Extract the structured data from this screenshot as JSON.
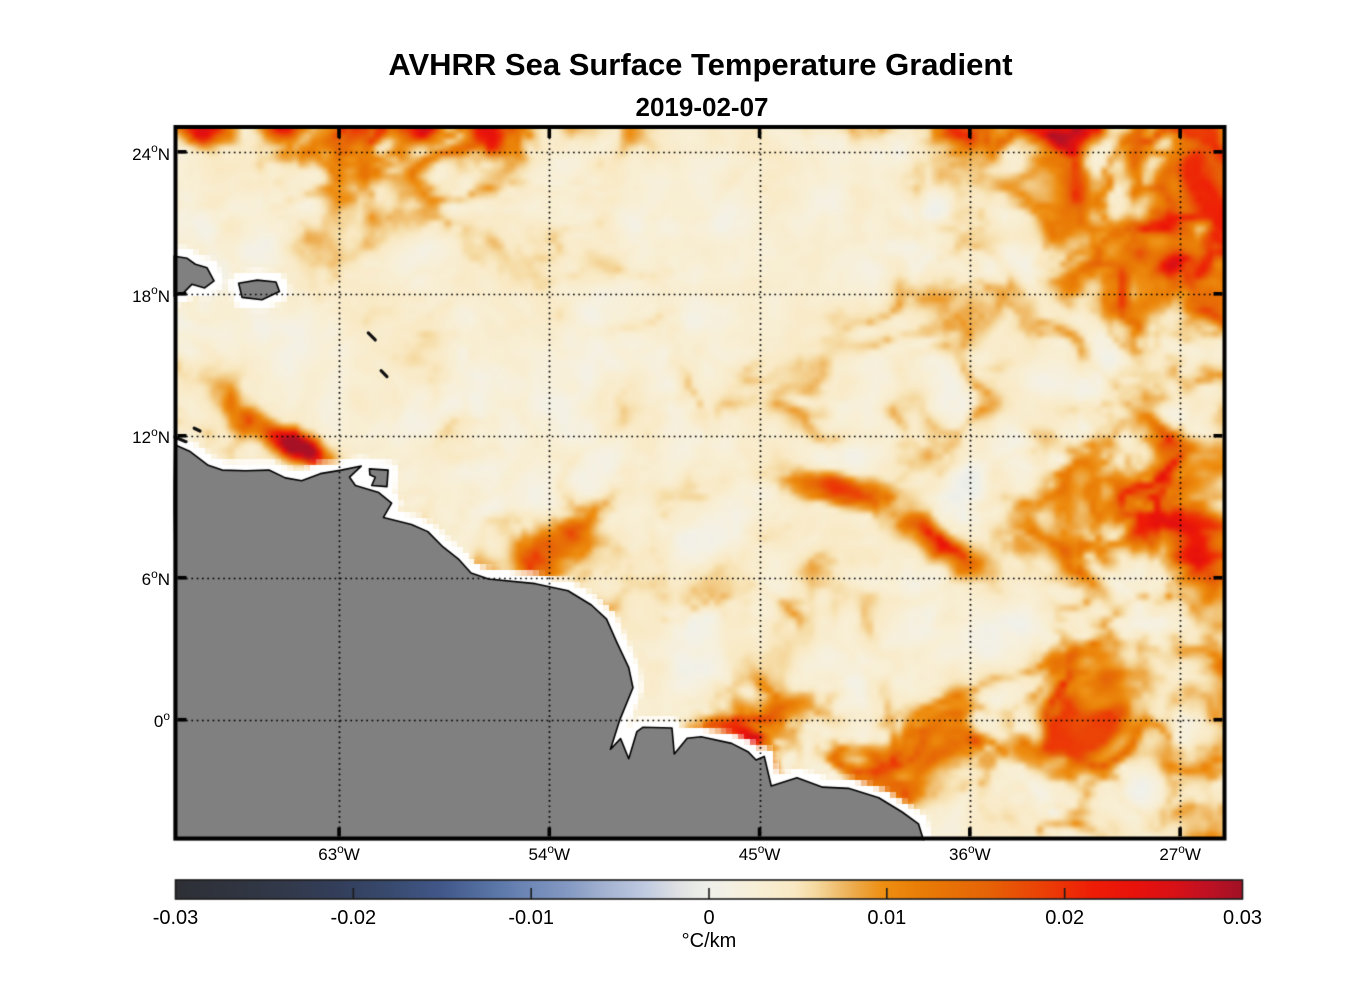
{
  "title": "AVHRR Sea Surface Temperature Gradient",
  "subtitle": "2019-02-07",
  "chart_data": {
    "type": "heatmap",
    "title": "AVHRR Sea Surface Temperature Gradient",
    "subtitle": "2019-02-07",
    "grid": "dotted",
    "x_axis": {
      "range": [
        -70.0,
        -25.1
      ],
      "tick_values": [
        -63,
        -54,
        -45,
        -36,
        -27
      ],
      "tick_labels": [
        "63°W",
        "54°W",
        "45°W",
        "36°W",
        "27°W"
      ],
      "tick_parts": [
        {
          "num": "63",
          "suffix": "W"
        },
        {
          "num": "54",
          "suffix": "W"
        },
        {
          "num": "45",
          "suffix": "W"
        },
        {
          "num": "36",
          "suffix": "W"
        },
        {
          "num": "27",
          "suffix": "W"
        }
      ]
    },
    "y_axis": {
      "range": [
        -5.02,
        25.05
      ],
      "tick_values": [
        24,
        18,
        12,
        6,
        0
      ],
      "tick_labels": [
        "24°N",
        "18°N",
        "12°N",
        "6°N",
        "0°"
      ],
      "tick_parts": [
        {
          "num": "24",
          "suffix": "N"
        },
        {
          "num": "18",
          "suffix": "N"
        },
        {
          "num": "12",
          "suffix": "N"
        },
        {
          "num": "6",
          "suffix": "N"
        },
        {
          "num": "0",
          "suffix": ""
        }
      ]
    },
    "colorbar": {
      "min": -0.03,
      "max": 0.03,
      "tick_values": [
        -0.03,
        -0.02,
        -0.01,
        0,
        0.01,
        0.02,
        0.03
      ],
      "tick_labels": [
        "-0.03",
        "-0.02",
        "-0.01",
        "0",
        "0.01",
        "0.02",
        "0.03"
      ],
      "label": "°C/km",
      "stops": [
        [
          0.0,
          "#2e3036"
        ],
        [
          0.05,
          "#30343f"
        ],
        [
          0.1,
          "#32394a"
        ],
        [
          0.15,
          "#333e5a"
        ],
        [
          0.2,
          "#384a6e"
        ],
        [
          0.25,
          "#42588a"
        ],
        [
          0.3,
          "#5a77a8"
        ],
        [
          0.33,
          "#6e87b6"
        ],
        [
          0.37,
          "#869bc4"
        ],
        [
          0.4,
          "#a2b1d0"
        ],
        [
          0.44,
          "#c0cbe2"
        ],
        [
          0.47,
          "#dee0e3"
        ],
        [
          0.487,
          "#e9ebe7"
        ],
        [
          0.503,
          "#f0f1ea"
        ],
        [
          0.52,
          "#f4f0e4"
        ],
        [
          0.545,
          "#f8efd6"
        ],
        [
          0.58,
          "#f9e9c4"
        ],
        [
          0.6,
          "#f5d9a0"
        ],
        [
          0.635,
          "#edac4e"
        ],
        [
          0.663,
          "#ee8f12"
        ],
        [
          0.7,
          "#e97c06"
        ],
        [
          0.76,
          "#e66407"
        ],
        [
          0.82,
          "#ec3b06"
        ],
        [
          0.86,
          "#ee1d06"
        ],
        [
          0.9,
          "#e8120c"
        ],
        [
          0.935,
          "#d91116"
        ],
        [
          0.965,
          "#c11123"
        ],
        [
          1.0,
          "#a11126"
        ]
      ]
    },
    "land": {
      "fill": "#808080",
      "outline": "#000000",
      "halo": "#ffffff",
      "mainland": [
        [
          -70.03,
          11.62
        ],
        [
          -69.4,
          11.35
        ],
        [
          -68.6,
          10.75
        ],
        [
          -68.0,
          10.55
        ],
        [
          -67.0,
          10.52
        ],
        [
          -66.0,
          10.55
        ],
        [
          -65.3,
          10.22
        ],
        [
          -64.6,
          10.1
        ],
        [
          -63.8,
          10.4
        ],
        [
          -62.9,
          10.55
        ],
        [
          -62.05,
          10.72
        ],
        [
          -62.55,
          10.25
        ],
        [
          -62.3,
          9.9
        ],
        [
          -61.3,
          9.6
        ],
        [
          -60.75,
          9.15
        ],
        [
          -61.1,
          8.55
        ],
        [
          -59.9,
          8.25
        ],
        [
          -59.2,
          7.95
        ],
        [
          -58.55,
          7.3
        ],
        [
          -57.9,
          6.8
        ],
        [
          -57.35,
          6.2
        ],
        [
          -56.6,
          5.95
        ],
        [
          -54.6,
          5.75
        ],
        [
          -53.2,
          5.45
        ],
        [
          -52.2,
          4.85
        ],
        [
          -51.55,
          4.25
        ],
        [
          -51.1,
          3.25
        ],
        [
          -50.6,
          2.2
        ],
        [
          -50.42,
          1.35
        ],
        [
          -51.0,
          -0.05
        ],
        [
          -51.38,
          -1.25
        ],
        [
          -50.95,
          -0.8
        ],
        [
          -50.6,
          -1.65
        ],
        [
          -50.25,
          -0.5
        ],
        [
          -50.0,
          -0.32
        ],
        [
          -48.75,
          -0.35
        ],
        [
          -48.65,
          -1.45
        ],
        [
          -48.1,
          -0.78
        ],
        [
          -47.5,
          -0.72
        ],
        [
          -46.2,
          -1.0
        ],
        [
          -45.5,
          -1.35
        ],
        [
          -45.15,
          -1.7
        ],
        [
          -44.8,
          -1.55
        ],
        [
          -44.5,
          -2.8
        ],
        [
          -43.4,
          -2.45
        ],
        [
          -42.3,
          -2.85
        ],
        [
          -41.2,
          -2.9
        ],
        [
          -39.9,
          -3.3
        ],
        [
          -38.9,
          -3.9
        ],
        [
          -38.2,
          -4.4
        ],
        [
          -37.7,
          -6.0
        ],
        [
          -70.5,
          -6.0
        ]
      ],
      "islands": {
        "hispaniola": [
          [
            -70.1,
            19.6
          ],
          [
            -69.5,
            19.5
          ],
          [
            -69.15,
            19.25
          ],
          [
            -68.65,
            19.1
          ],
          [
            -68.35,
            18.55
          ],
          [
            -68.75,
            18.25
          ],
          [
            -69.3,
            18.4
          ],
          [
            -69.65,
            18.05
          ],
          [
            -70.1,
            17.9
          ]
        ],
        "puerto_rico": [
          [
            -67.3,
            18.45
          ],
          [
            -66.5,
            18.58
          ],
          [
            -65.7,
            18.5
          ],
          [
            -65.55,
            18.1
          ],
          [
            -66.3,
            17.75
          ],
          [
            -67.15,
            17.85
          ]
        ],
        "trinidad": [
          [
            -61.7,
            10.6
          ],
          [
            -60.9,
            10.55
          ],
          [
            -60.95,
            9.85
          ],
          [
            -61.6,
            9.9
          ],
          [
            -61.45,
            10.25
          ],
          [
            -61.68,
            10.35
          ]
        ]
      },
      "small_islands": [
        [
          [
            -70.05,
            11.95
          ],
          [
            -69.55,
            11.75
          ]
        ],
        [
          [
            -69.2,
            12.32
          ],
          [
            -68.95,
            12.2
          ]
        ],
        [
          [
            -61.75,
            16.35
          ],
          [
            -61.45,
            16.05
          ]
        ],
        [
          [
            -61.2,
            14.75
          ],
          [
            -60.95,
            14.5
          ]
        ]
      ]
    },
    "field": {
      "seed": 2019,
      "value_range": [
        -0.004,
        0.0295
      ],
      "background_level": 0.0013,
      "hotspots": [
        {
          "lon": -64.7,
          "lat": 11.55,
          "sx": 0.95,
          "sy": 0.34,
          "rot": -22,
          "amp": 0.031
        },
        {
          "lon": -66.8,
          "lat": 12.7,
          "sx": 1.5,
          "sy": 0.42,
          "rot": -38,
          "amp": 0.009
        },
        {
          "lon": -68.8,
          "lat": 25.05,
          "sx": 0.7,
          "sy": 0.45,
          "rot": -15,
          "amp": 0.024
        },
        {
          "lon": -65.2,
          "lat": 25.2,
          "sx": 0.8,
          "sy": 0.4,
          "rot": 5,
          "amp": 0.013
        },
        {
          "lon": -58.9,
          "lat": 25.1,
          "sx": 1.0,
          "sy": 0.42,
          "rot": 10,
          "amp": 0.009
        },
        {
          "lon": -56.4,
          "lat": 24.3,
          "sx": 0.8,
          "sy": 0.4,
          "rot": -35,
          "amp": 0.008
        },
        {
          "lon": -31.8,
          "lat": 24.8,
          "sx": 1.0,
          "sy": 0.5,
          "rot": 15,
          "amp": 0.013
        },
        {
          "lon": -27.8,
          "lat": 19.6,
          "sx": 0.9,
          "sy": 0.55,
          "rot": -40,
          "amp": 0.012
        },
        {
          "lon": -41.8,
          "lat": 9.8,
          "sx": 1.7,
          "sy": 0.45,
          "rot": -12,
          "amp": 0.015
        },
        {
          "lon": -37.3,
          "lat": 7.4,
          "sx": 1.4,
          "sy": 0.5,
          "rot": -35,
          "amp": 0.014
        },
        {
          "lon": -45.45,
          "lat": -0.65,
          "sx": 0.45,
          "sy": 0.3,
          "rot": -20,
          "amp": 0.028
        },
        {
          "lon": -54.2,
          "lat": 7.0,
          "sx": 1.4,
          "sy": 0.5,
          "rot": 40,
          "amp": 0.013
        },
        {
          "lon": -27.6,
          "lat": 11.6,
          "sx": 1.0,
          "sy": 0.6,
          "rot": -60,
          "amp": 0.012
        },
        {
          "lon": -26.6,
          "lat": 7.1,
          "sx": 1.2,
          "sy": 0.5,
          "rot": -50,
          "amp": 0.012
        }
      ]
    }
  }
}
